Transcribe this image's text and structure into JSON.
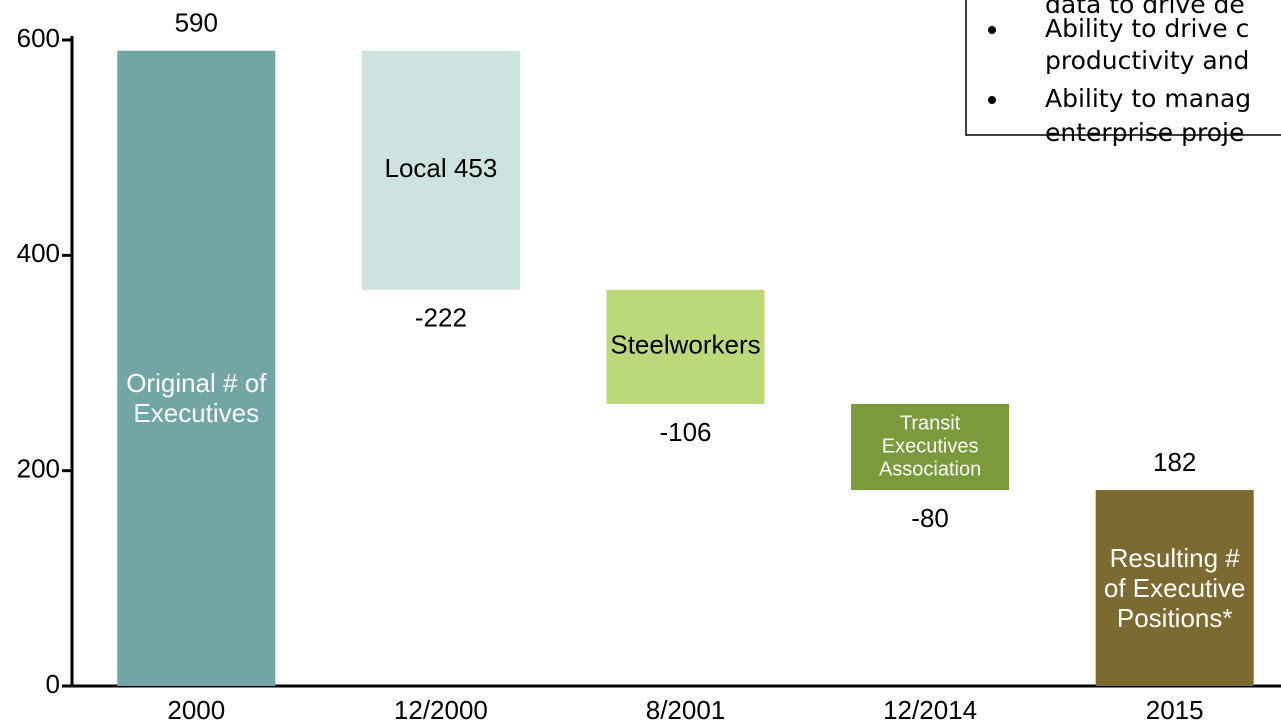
{
  "chart_data": {
    "type": "waterfall",
    "categories": [
      "2000",
      "12/2000",
      "8/2001",
      "12/2014",
      "2015"
    ],
    "values": [
      590,
      -222,
      -106,
      -80,
      182
    ],
    "measures": [
      "absolute",
      "relative",
      "relative",
      "relative",
      "absolute"
    ],
    "colors": [
      "#72a6a6",
      "#cde3df",
      "#bcd97a",
      "#7a9a3c",
      "#7d6a30"
    ],
    "bar_labels": [
      [
        "Original # of",
        "Executives"
      ],
      [
        "Local 453"
      ],
      [
        "Steelworkers"
      ],
      [
        "Transit",
        "Executives",
        "Association"
      ],
      [
        "Resulting #",
        "of Executive",
        "Positions*"
      ]
    ],
    "bar_label_colors": [
      "#ffffff",
      "#000000",
      "#000000",
      "#ffffff",
      "#ffffff"
    ],
    "ylim": [
      0,
      600
    ],
    "yticks": [
      0,
      200,
      400,
      600
    ],
    "note_box": [
      "data to drive de",
      "Ability to drive c",
      "productivity and",
      "Ability to manag",
      "enterprise proje"
    ],
    "note_bullets": [
      false,
      true,
      false,
      true,
      false
    ]
  }
}
